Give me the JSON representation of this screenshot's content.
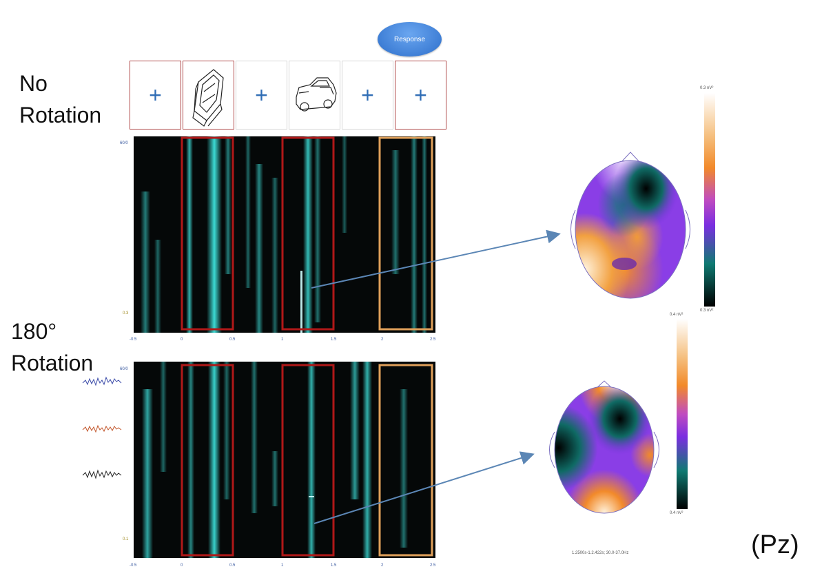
{
  "conditions": {
    "no_rotation": {
      "line1": "No",
      "line2": "Rotation"
    },
    "rotation_180": {
      "line1": "180°",
      "line2": "Rotation"
    }
  },
  "response_button": "Response",
  "stimuli": [
    {
      "kind": "cross",
      "glyph": "+"
    },
    {
      "kind": "car-image",
      "glyph": ""
    },
    {
      "kind": "cross",
      "glyph": "+"
    },
    {
      "kind": "car-image",
      "glyph": ""
    },
    {
      "kind": "cross",
      "glyph": "+"
    },
    {
      "kind": "cross",
      "glyph": "+"
    }
  ],
  "channel": "(Pz)",
  "colors": {
    "spectro_bg": "#050808",
    "spectro_streak": "#3fe6e0",
    "box_red": "#b01818",
    "box_orange": "#e0a05a",
    "arrow": "#5b86b5"
  },
  "colorbar_top": {
    "max_label": "0.3 nV²",
    "min_label": "0.3 nV²"
  },
  "colorbar_bottom": {
    "max_label": "0.4 nV²",
    "min_label": "0.4 nV²"
  },
  "top_axis": {
    "ytop": "60/0",
    "ybottom": "0.3",
    "xticks": [
      "-0.5",
      "0",
      "0.5",
      "1",
      "1.5",
      "2",
      "2.5"
    ]
  },
  "bottom_axis": {
    "ytop": "60/0",
    "ybottom": "0.1",
    "xticks": [
      "-0.5",
      "0",
      "0.5",
      "1",
      "1.5",
      "2",
      "2.5"
    ]
  },
  "footer": "1.2500s-1.2.422s; 30.0-37.0Hz"
}
